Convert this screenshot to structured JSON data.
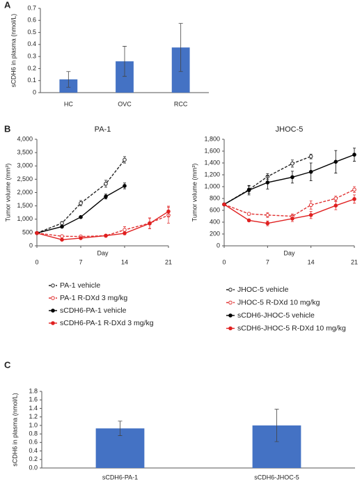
{
  "chart_data": [
    {
      "label": "A",
      "type": "bar",
      "categories": [
        "HC",
        "OVC",
        "RCC"
      ],
      "values": [
        0.11,
        0.26,
        0.375
      ],
      "errors": [
        0.065,
        0.125,
        0.2
      ],
      "color": "#4472c4",
      "ylabel": "sCDH6 in plasma (nmol/L)",
      "ylim": [
        0,
        0.7
      ],
      "yticks": [
        0,
        0.1,
        0.2,
        0.3,
        0.4,
        0.5,
        0.6,
        0.7
      ]
    },
    {
      "label": "B",
      "type": "line",
      "title": "PA-1",
      "xlabel": "Day",
      "ylabel": "Tumor volume (mm³)",
      "x": [
        0,
        4,
        7,
        11,
        14,
        18,
        21
      ],
      "xlim": [
        0,
        21
      ],
      "xticks": [
        0,
        7,
        14,
        21
      ],
      "ylim": [
        0,
        4000
      ],
      "yticks": [
        0,
        500,
        {
          "value": 1000,
          "label": "1,000"
        },
        {
          "value": 1500,
          "label": "1,500"
        },
        {
          "value": 2000,
          "label": "2,000"
        },
        {
          "value": 2500,
          "label": "2,500"
        },
        {
          "value": 3000,
          "label": "3,000"
        },
        {
          "value": 3500,
          "label": "3,500"
        },
        {
          "value": 4000,
          "label": "4,000"
        }
      ],
      "series": [
        {
          "name": "PA-1 vehicle",
          "color": "#222222",
          "dashed": true,
          "marker": "open",
          "values": [
            480,
            850,
            1600,
            2330,
            3230,
            null,
            null
          ],
          "errors": [
            null,
            60,
            100,
            130,
            120,
            null,
            null
          ]
        },
        {
          "name": "PA-1 R-DXd 3 mg/kg",
          "color": "#e03030",
          "dashed": true,
          "marker": "open",
          "values": [
            480,
            360,
            350,
            380,
            600,
            850,
            1150
          ],
          "errors": [
            null,
            30,
            40,
            50,
            120,
            200,
            300
          ]
        },
        {
          "name": "sCDH6-PA-1 vehicle",
          "color": "#000000",
          "dashed": false,
          "marker": "filled",
          "values": [
            480,
            720,
            1080,
            1850,
            2250,
            null,
            null
          ],
          "errors": [
            null,
            40,
            40,
            90,
            110,
            null,
            null
          ]
        },
        {
          "name": "sCDH6-PA-1 R-DXd 3 mg/kg",
          "color": "#e02020",
          "dashed": false,
          "marker": "filled",
          "values": [
            480,
            230,
            290,
            380,
            470,
            840,
            1290
          ],
          "errors": [
            null,
            20,
            30,
            40,
            50,
            200,
            200
          ]
        }
      ]
    },
    {
      "type": "line",
      "title": "JHOC-5",
      "xlabel": "Day",
      "ylabel": "Tumor volume (mm³)",
      "x": [
        0,
        4,
        7,
        11,
        14,
        18,
        21
      ],
      "xlim": [
        0,
        21
      ],
      "xticks": [
        0,
        7,
        14,
        21
      ],
      "ylim": [
        0,
        1800
      ],
      "yticks": [
        0,
        200,
        400,
        600,
        800,
        {
          "value": 1000,
          "label": "1,000"
        },
        {
          "value": 1200,
          "label": "1,200"
        },
        {
          "value": 1400,
          "label": "1,400"
        },
        {
          "value": 1600,
          "label": "1,600"
        },
        {
          "value": 1800,
          "label": "1,800"
        }
      ],
      "series": [
        {
          "name": "JHOC-5 vehicle",
          "color": "#222222",
          "dashed": true,
          "marker": "open",
          "values": [
            700,
            950,
            1170,
            1390,
            1510,
            null,
            null
          ],
          "errors": [
            null,
            60,
            50,
            60,
            40,
            null,
            null
          ]
        },
        {
          "name": "JHOC-5 R-DXd 10 mg/kg",
          "color": "#e03030",
          "dashed": true,
          "marker": "open",
          "values": [
            700,
            540,
            520,
            500,
            690,
            800,
            950
          ],
          "errors": [
            null,
            20,
            40,
            40,
            70,
            40,
            50
          ]
        },
        {
          "name": "sCDH6-JHOC-5 vehicle",
          "color": "#000000",
          "dashed": false,
          "marker": "filled",
          "values": [
            700,
            940,
            1070,
            1160,
            1250,
            1420,
            1540
          ],
          "errors": [
            null,
            80,
            110,
            100,
            150,
            190,
            110
          ]
        },
        {
          "name": "sCDH6-JHOC-5 R-DXd 10 mg/kg",
          "color": "#e02020",
          "dashed": false,
          "marker": "filled",
          "values": [
            700,
            430,
            380,
            460,
            520,
            680,
            790
          ],
          "errors": [
            null,
            20,
            40,
            50,
            60,
            70,
            70
          ]
        }
      ]
    },
    {
      "label": "C",
      "type": "bar",
      "categories": [
        "sCDH6-PA-1",
        "sCDH6-JHOC-5"
      ],
      "values": [
        0.93,
        1.0
      ],
      "errors": [
        0.17,
        0.38
      ],
      "color": "#4472c4",
      "ylabel": "sCDH6 in plasma (nmol/L)",
      "ylim": [
        0,
        1.8
      ],
      "yticks": [
        {
          "value": 0,
          "label": "0.0"
        },
        0.2,
        0.4,
        0.6,
        0.8,
        {
          "value": 1.0,
          "label": "1.0"
        },
        1.2,
        1.4,
        1.6,
        1.8
      ]
    }
  ]
}
